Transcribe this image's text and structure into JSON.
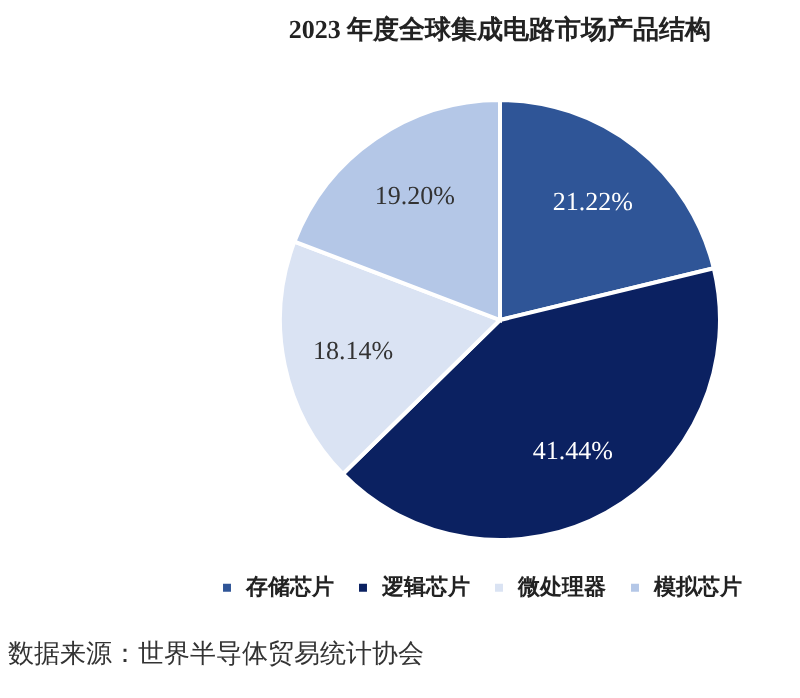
{
  "chart_data": {
    "type": "pie",
    "title": "2023 年度全球集成电路市场产品结构",
    "categories": [
      "存储芯片",
      "逻辑芯片",
      "微处理器",
      "模拟芯片"
    ],
    "values": [
      21.22,
      41.44,
      18.14,
      19.2
    ],
    "value_labels": [
      "21.22%",
      "41.44%",
      "18.14%",
      "19.20%"
    ],
    "colors": [
      "#2f5597",
      "#0b2161",
      "#dae3f3",
      "#b4c7e7"
    ],
    "legend": "bottom",
    "annotations": [
      "数据来源：世界半导体贸易统计协会"
    ]
  }
}
